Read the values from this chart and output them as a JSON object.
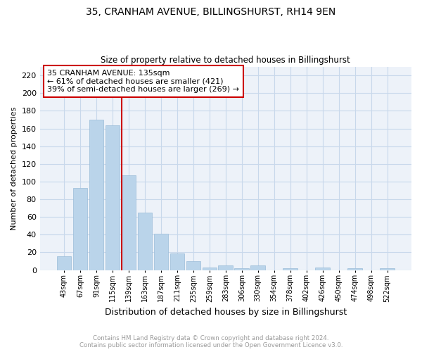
{
  "title": "35, CRANHAM AVENUE, BILLINGSHURST, RH14 9EN",
  "subtitle": "Size of property relative to detached houses in Billingshurst",
  "xlabel": "Distribution of detached houses by size in Billingshurst",
  "ylabel": "Number of detached properties",
  "footer_line1": "Contains HM Land Registry data © Crown copyright and database right 2024.",
  "footer_line2": "Contains public sector information licensed under the Open Government Licence v3.0.",
  "categories": [
    "43sqm",
    "67sqm",
    "91sqm",
    "115sqm",
    "139sqm",
    "163sqm",
    "187sqm",
    "211sqm",
    "235sqm",
    "259sqm",
    "283sqm",
    "306sqm",
    "330sqm",
    "354sqm",
    "378sqm",
    "402sqm",
    "426sqm",
    "450sqm",
    "474sqm",
    "498sqm",
    "522sqm"
  ],
  "values": [
    16,
    93,
    170,
    164,
    107,
    65,
    41,
    19,
    10,
    3,
    5,
    2,
    5,
    0,
    2,
    0,
    3,
    0,
    2,
    0,
    2
  ],
  "bar_color": "#bad4ea",
  "bar_edge_color": "#9abcd8",
  "grid_color": "#c8d8eb",
  "bg_color": "#edf2f9",
  "vline_color": "#cc0000",
  "annotation_title": "35 CRANHAM AVENUE: 135sqm",
  "annotation_line1": "← 61% of detached houses are smaller (421)",
  "annotation_line2": "39% of semi-detached houses are larger (269) →",
  "box_edge_color": "#cc0000",
  "ylim": [
    0,
    230
  ],
  "yticks": [
    0,
    20,
    40,
    60,
    80,
    100,
    120,
    140,
    160,
    180,
    200,
    220
  ]
}
